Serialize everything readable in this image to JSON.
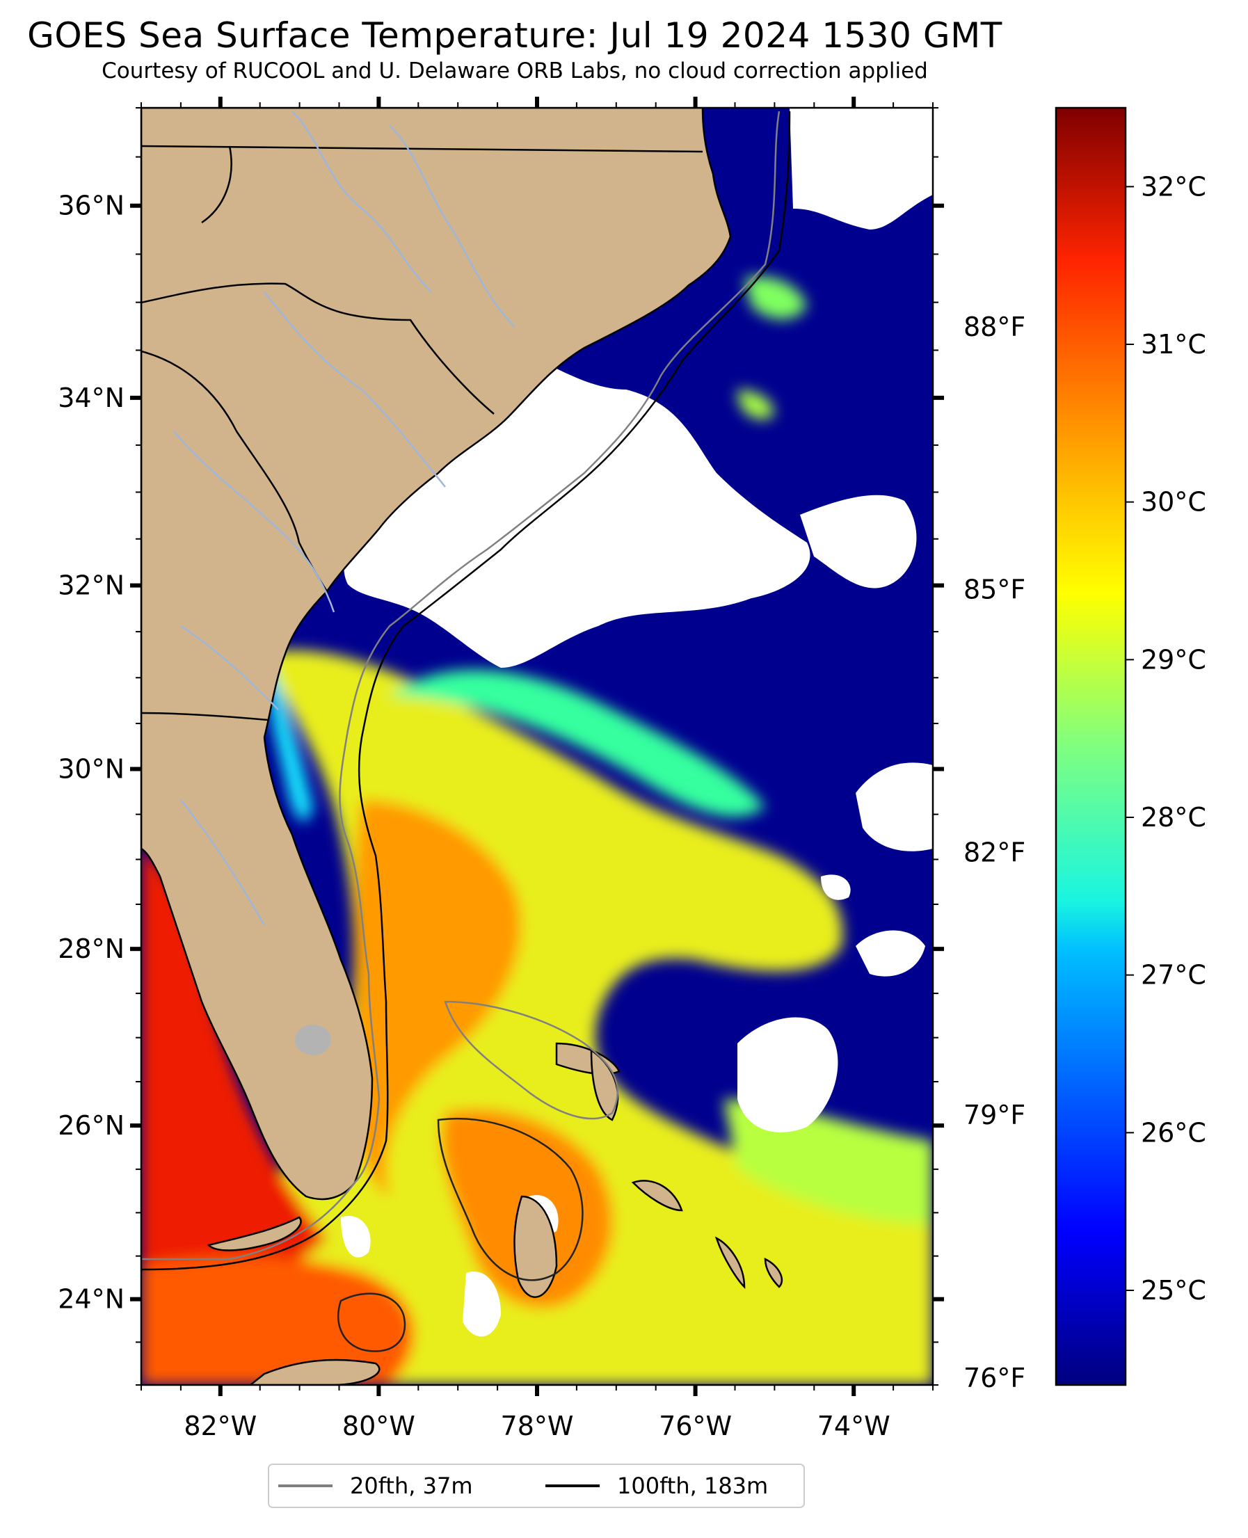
{
  "title": "GOES Sea Surface Temperature: Jul 19 2024 1530 GMT",
  "subtitle": "Courtesy of RUCOOL and U. Delaware ORB Labs, no cloud correction applied",
  "chart_data": {
    "type": "heatmap",
    "map_extent": {
      "lon_min": -83.0,
      "lon_max": -73.0,
      "lat_min": 23.0,
      "lat_max": 37.0
    },
    "lon_ticks": [
      {
        "value": -82,
        "label": "82°W"
      },
      {
        "value": -80,
        "label": "80°W"
      },
      {
        "value": -78,
        "label": "78°W"
      },
      {
        "value": -76,
        "label": "76°W"
      },
      {
        "value": -74,
        "label": "74°W"
      }
    ],
    "lat_ticks": [
      {
        "value": 36,
        "label": "36°N"
      },
      {
        "value": 34,
        "label": "34°N"
      },
      {
        "value": 32,
        "label": "32°N"
      },
      {
        "value": 30,
        "label": "30°N"
      },
      {
        "value": 28,
        "label": "28°N"
      },
      {
        "value": 26,
        "label": "26°N"
      },
      {
        "value": 24,
        "label": "24°N"
      }
    ],
    "colorbar": {
      "vmin": 24.4,
      "vmax": 32.5,
      "celsius_ticks": [
        {
          "value": 25,
          "label": "25°C"
        },
        {
          "value": 26,
          "label": "26°C"
        },
        {
          "value": 27,
          "label": "27°C"
        },
        {
          "value": 28,
          "label": "28°C"
        },
        {
          "value": 29,
          "label": "29°C"
        },
        {
          "value": 30,
          "label": "30°C"
        },
        {
          "value": 31,
          "label": "31°C"
        },
        {
          "value": 32,
          "label": "32°C"
        }
      ],
      "fahrenheit_ticks": [
        {
          "value": 88,
          "label": "88°F"
        },
        {
          "value": 85,
          "label": "85°F"
        },
        {
          "value": 82,
          "label": "82°F"
        },
        {
          "value": 79,
          "label": "79°F"
        },
        {
          "value": 76,
          "label": "76°F"
        }
      ],
      "colormap": "jet"
    },
    "legend": {
      "position": "bottom",
      "entries": [
        {
          "label": "20fth, 37m",
          "color": "#808080"
        },
        {
          "label": "100fth, 183m",
          "color": "#000000"
        }
      ]
    },
    "colors": {
      "land": "#d2b48c",
      "cloud": "#ffffff",
      "rivers": "#9fb6d9",
      "lake": "#b3b3b3",
      "coast": "#000000"
    }
  }
}
